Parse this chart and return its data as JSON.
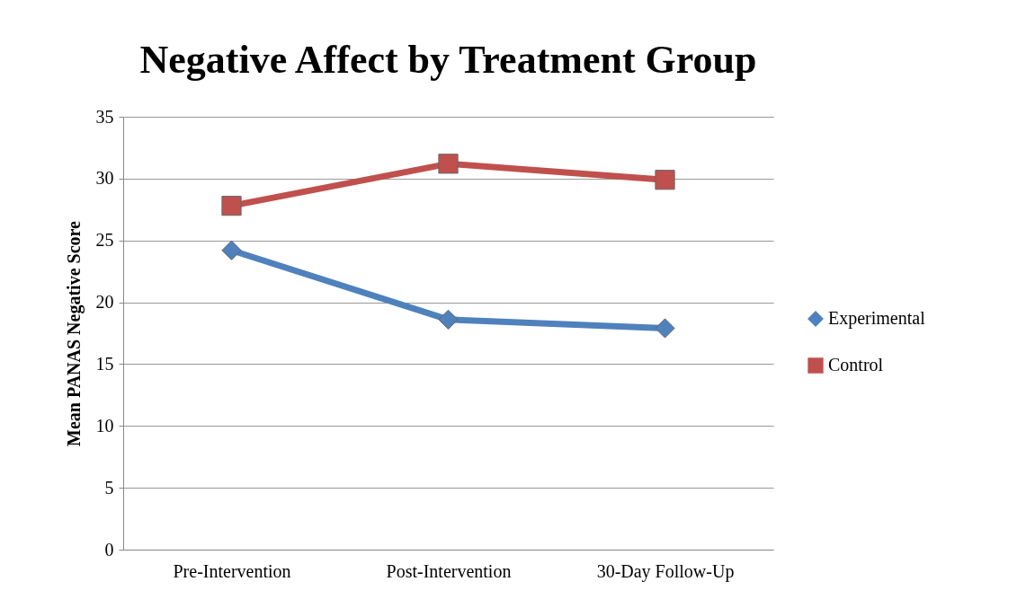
{
  "chart_data": {
    "type": "line",
    "title": "Negative Affect by Treatment Group",
    "ylabel": "Mean PANAS Negative Score",
    "categories": [
      "Pre-Intervention",
      "Post-Intervention",
      "30-Day Follow-Up"
    ],
    "series": [
      {
        "name": "Experimental",
        "color": "#4f81bd",
        "marker": "diamond",
        "values": [
          24.2,
          18.6,
          17.9
        ]
      },
      {
        "name": "Control",
        "color": "#c0504d",
        "marker": "square",
        "values": [
          27.8,
          31.2,
          29.9
        ]
      }
    ],
    "ylim": [
      0,
      35
    ],
    "yticks": [
      0,
      5,
      10,
      15,
      20,
      25,
      30,
      35
    ],
    "grid": "y",
    "legend": "right",
    "line_style": "solid"
  }
}
